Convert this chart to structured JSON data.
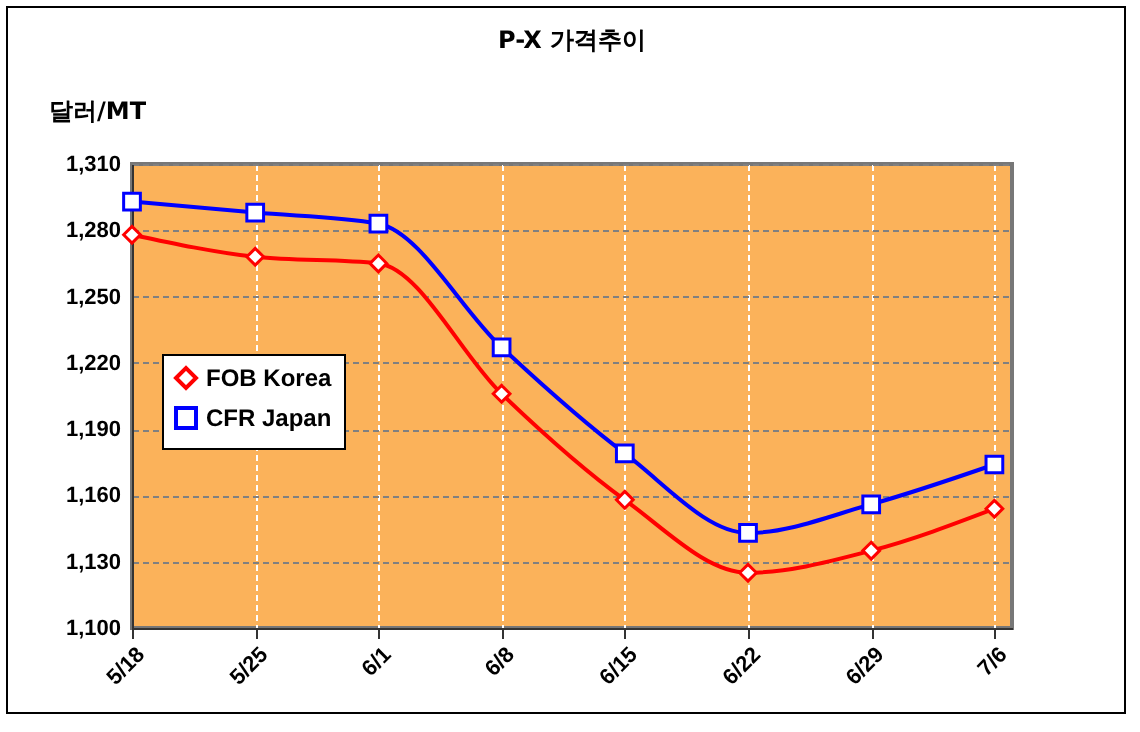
{
  "chart_data": {
    "type": "line",
    "title": "P-X 가격추이",
    "ylabel": "달러/MT",
    "x": [
      "--05-18",
      "--05-25",
      "--06-01",
      "--06-08",
      "--06-15",
      "--06-22",
      "--06-29",
      "--07-06"
    ],
    "series": [
      {
        "name": "FOB Korea",
        "color": "#ff0000",
        "marker": "diamond",
        "values": [
          1278,
          1268,
          1265,
          1206,
          1158,
          1125,
          1135,
          1154
        ]
      },
      {
        "name": "CFR Japan",
        "color": "#0000ff",
        "marker": "square",
        "values": [
          1293,
          1288,
          1283,
          1227,
          1179,
          1143,
          1156,
          1174
        ]
      }
    ],
    "xlim": [
      "--05-18",
      "--07-07"
    ],
    "xticks": [
      {
        "value": "--05-18",
        "label": "5/18"
      },
      {
        "value": "--05-25",
        "label": "5/25"
      },
      {
        "value": "--06-01",
        "label": "6/1"
      },
      {
        "value": "--06-08",
        "label": "6/8"
      },
      {
        "value": "--06-15",
        "label": "6/15"
      },
      {
        "value": "--06-22",
        "label": "6/22"
      },
      {
        "value": "--06-29",
        "label": "6/29"
      },
      {
        "value": "--07-06",
        "label": "7/6"
      }
    ],
    "ylim": [
      1100,
      1310
    ],
    "yticks": [
      {
        "value": 1100,
        "label": "1,100"
      },
      {
        "value": 1130,
        "label": "1,130"
      },
      {
        "value": 1160,
        "label": "1,160"
      },
      {
        "value": 1190,
        "label": "1,190"
      },
      {
        "value": 1220,
        "label": "1,220"
      },
      {
        "value": 1250,
        "label": "1,250"
      },
      {
        "value": 1280,
        "label": "1,280"
      },
      {
        "value": 1310,
        "label": "1,310"
      }
    ],
    "grid": true,
    "legend": "left"
  }
}
